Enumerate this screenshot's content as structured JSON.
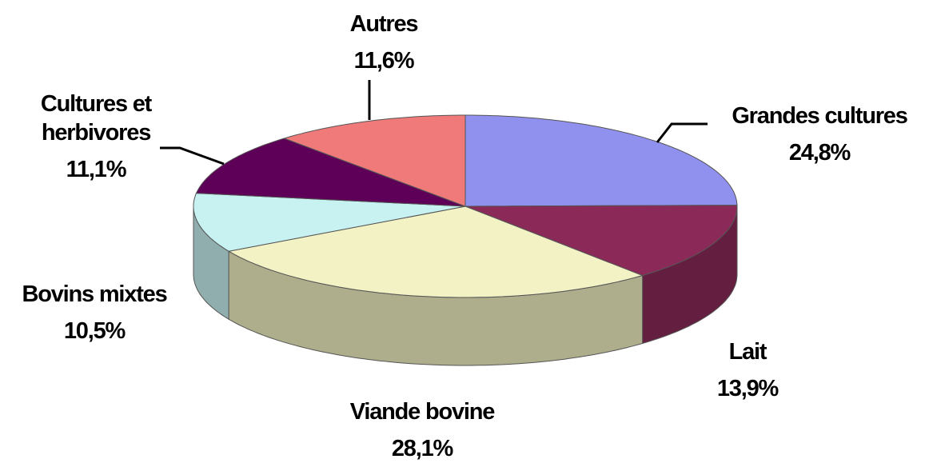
{
  "chart_data": {
    "type": "pie",
    "categories": [
      "Grandes cultures",
      "Lait",
      "Viande bovine",
      "Bovins mixtes",
      "Cultures et herbivores",
      "Autres"
    ],
    "values": [
      24.8,
      13.9,
      28.1,
      10.5,
      11.1,
      11.6
    ],
    "value_labels": [
      "24,8%",
      "13,9%",
      "28,1%",
      "10,5%",
      "11,1%",
      "11,6%"
    ],
    "colors": [
      "#9090ee",
      "#8b2a58",
      "#f2f2c4",
      "#c8f2f2",
      "#5e0058",
      "#f07a7a"
    ]
  }
}
